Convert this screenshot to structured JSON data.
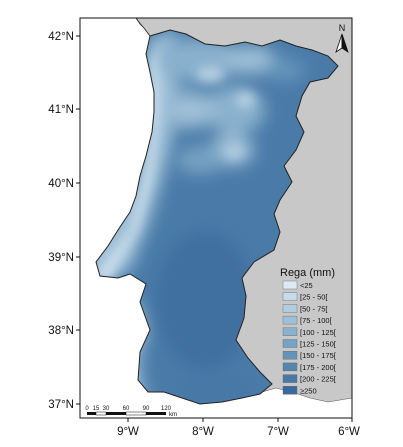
{
  "map": {
    "lat_ticks": [
      "42°N",
      "41°N",
      "40°N",
      "39°N",
      "38°N",
      "37°N"
    ],
    "lon_ticks": [
      "9°W",
      "8°W",
      "7°W",
      "6°W"
    ],
    "north_label": "N"
  },
  "legend": {
    "title": "Rega (mm)",
    "classes": [
      {
        "label": "<25",
        "color": "#dceaf3"
      },
      {
        "label": "[25 - 50[",
        "color": "#c7dcea"
      },
      {
        "label": "[50 - 75[",
        "color": "#b2cde0"
      },
      {
        "label": "[75 - 100[",
        "color": "#9ebfd7"
      },
      {
        "label": "[100 - 125[",
        "color": "#8ab1cd"
      },
      {
        "label": "[125 - 150[",
        "color": "#76a2c3"
      },
      {
        "label": "[150 - 175[",
        "color": "#6594ba"
      },
      {
        "label": "[175 - 200[",
        "color": "#5586b0"
      },
      {
        "label": "[200 - 225[",
        "color": "#4778a6"
      },
      {
        "label": "≥250",
        "color": "#3a6a9b"
      }
    ]
  },
  "scale_bar": {
    "ticks": [
      "0",
      "15",
      "30",
      "60",
      "90",
      "120"
    ],
    "unit": "km"
  },
  "colors": {
    "land_background": "#c8c8c8",
    "sea": "#ffffff",
    "coast": "#222222"
  }
}
